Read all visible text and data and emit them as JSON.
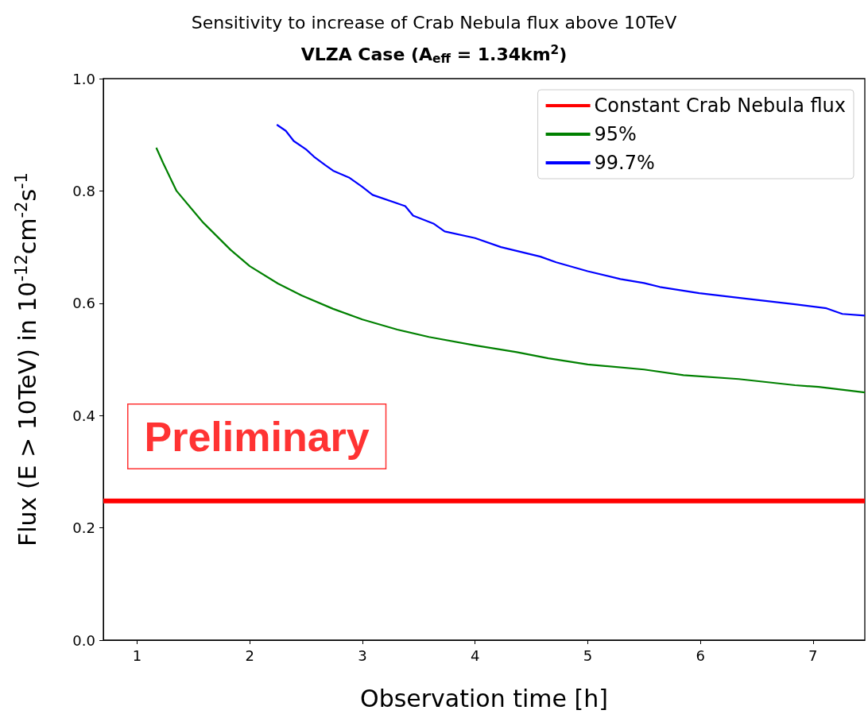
{
  "chart_data": {
    "type": "line",
    "title": "Sensitivity to increase of Crab Nebula flux above 10TeV",
    "subtitle": "VLZA Case (A$_{eff}$ = 1.34km$^{2}$)",
    "xlabel": "Observation time [h]",
    "ylabel": "Flux (E > 10TeV) in 10$^{-12}$cm$^{-2}$s$^{-1}$",
    "xlim": [
      0.7,
      7.46
    ],
    "xticks": [
      1,
      2,
      3,
      4,
      5,
      6,
      7
    ],
    "ylim": [
      0,
      1
    ],
    "yticks": [
      {
        "value": 0,
        "label": "0.0"
      },
      0.2,
      0.4,
      0.6,
      0.8,
      {
        "value": 1,
        "label": "1.0"
      }
    ],
    "grid": false,
    "legend": "top right",
    "marker": "none",
    "line_style": "solid",
    "annotations": [
      "Preliminary"
    ],
    "series": [
      {
        "name": "Constant Crab Nebula flux",
        "color": "#ff0000",
        "x": [
          0.7,
          7.46
        ],
        "values": [
          0.248,
          0.248
        ]
      },
      {
        "name": "95%",
        "color": "#008000",
        "x": [
          1.17,
          1.23,
          1.35,
          1.58,
          1.83,
          2.0,
          2.25,
          2.46,
          2.74,
          3.0,
          3.31,
          3.59,
          4.0,
          4.37,
          4.65,
          5.0,
          5.5,
          5.85,
          6.34,
          6.84,
          7.05,
          7.46
        ],
        "values": [
          0.877,
          0.85,
          0.8,
          0.745,
          0.695,
          0.666,
          0.635,
          0.614,
          0.59,
          0.571,
          0.553,
          0.54,
          0.525,
          0.513,
          0.502,
          0.491,
          0.482,
          0.472,
          0.465,
          0.454,
          0.451,
          0.441
        ]
      },
      {
        "name": "99.7%",
        "color": "#0000ff",
        "x": [
          2.24,
          2.32,
          2.39,
          2.5,
          2.57,
          2.67,
          2.74,
          2.88,
          3.0,
          3.09,
          3.38,
          3.45,
          3.63,
          3.73,
          4.0,
          4.23,
          4.58,
          4.72,
          5.0,
          5.29,
          5.5,
          5.64,
          5.99,
          6.41,
          6.84,
          7.12,
          7.26,
          7.46
        ],
        "values": [
          0.918,
          0.907,
          0.889,
          0.874,
          0.861,
          0.846,
          0.836,
          0.824,
          0.807,
          0.793,
          0.773,
          0.756,
          0.742,
          0.728,
          0.716,
          0.7,
          0.683,
          0.673,
          0.657,
          0.643,
          0.636,
          0.629,
          0.618,
          0.608,
          0.598,
          0.591,
          0.581,
          0.578
        ]
      }
    ]
  }
}
